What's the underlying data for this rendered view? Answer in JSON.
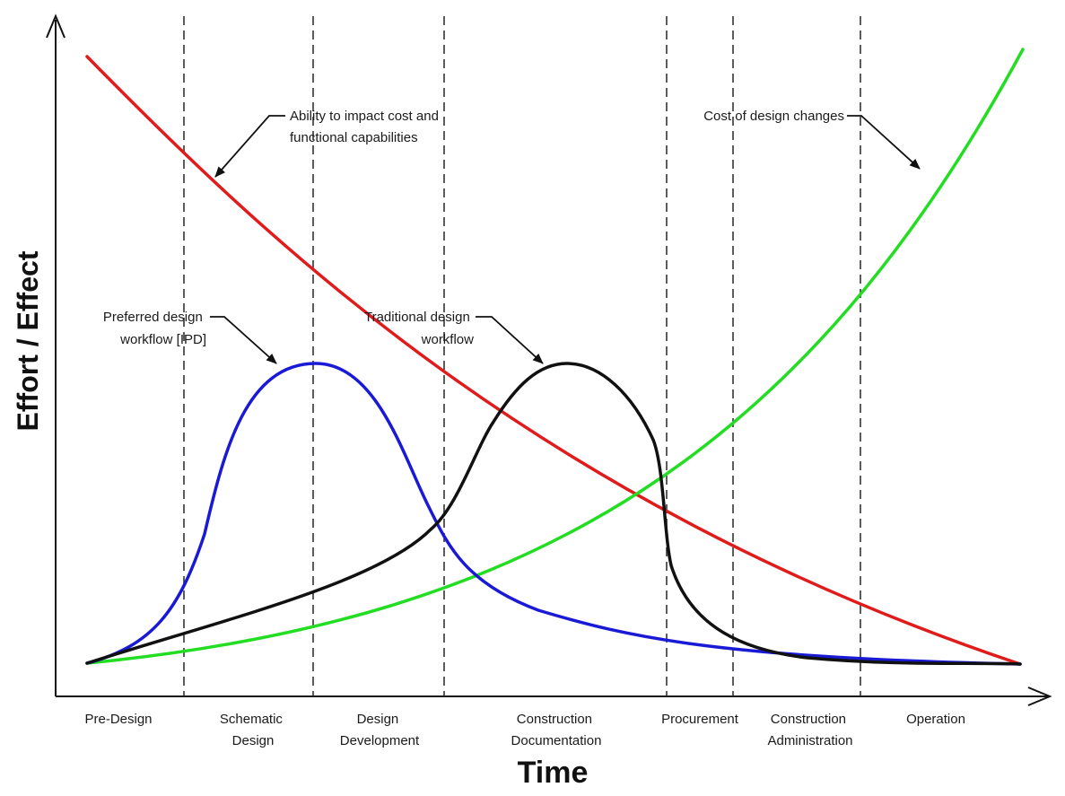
{
  "axes": {
    "y_title": "Effort / Effect",
    "x_title": "Time"
  },
  "phases": [
    {
      "lines": [
        "Pre-Design"
      ]
    },
    {
      "lines": [
        "Schematic",
        "Design"
      ]
    },
    {
      "lines": [
        "Design",
        "Development"
      ]
    },
    {
      "lines": [
        "Construction",
        "Documentation"
      ]
    },
    {
      "lines": [
        "Procurement"
      ]
    },
    {
      "lines": [
        "Construction",
        "Administration"
      ]
    },
    {
      "lines": [
        "Operation"
      ]
    }
  ],
  "curves": [
    {
      "id": "ability",
      "color": "#e01b1b"
    },
    {
      "id": "cost-of-changes",
      "color": "#22dd22"
    },
    {
      "id": "preferred-ipd",
      "color": "#1a1ad6"
    },
    {
      "id": "traditional",
      "color": "#111111"
    }
  ],
  "annotations": [
    {
      "id": "ability",
      "lines": [
        "Ability to impact cost and",
        "functional capabilities"
      ]
    },
    {
      "id": "cost-of-changes",
      "lines": [
        "Cost of design changes"
      ]
    },
    {
      "id": "preferred",
      "lines": [
        "Preferred design",
        "workflow [IPD]"
      ]
    },
    {
      "id": "traditional",
      "lines": [
        "Traditional design",
        "workflow"
      ]
    }
  ]
}
